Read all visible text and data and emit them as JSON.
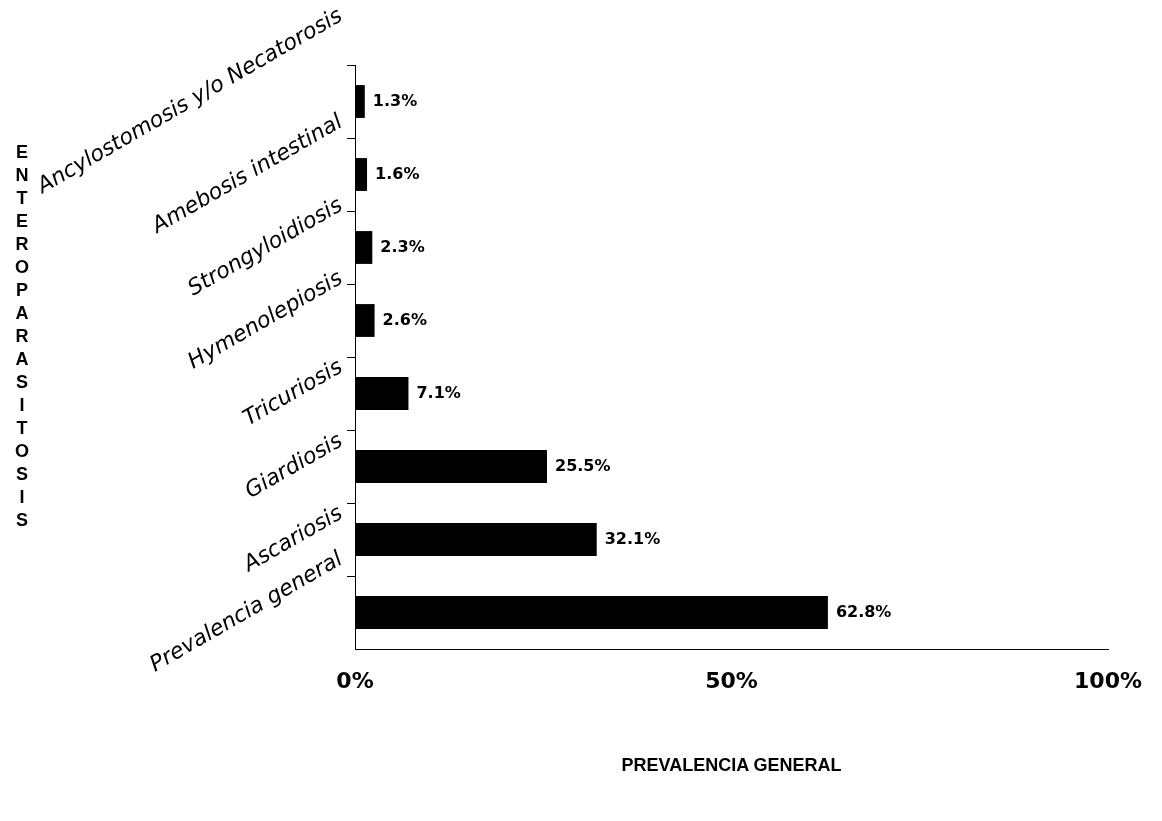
{
  "chart_data": {
    "type": "bar",
    "orientation": "horizontal",
    "xlabel": "PREVALENCIA GENERAL",
    "ylabel": "ENTEROPARASITOSIS",
    "categories": [
      "Ancylostomosis y/o Necatorosis",
      "Amebosis intestinal",
      "Strongyloidiosis",
      "Hymenolepiosis",
      "Tricuriosis",
      "Giardiosis",
      "Ascariosis",
      "Prevalencia general"
    ],
    "values": [
      1.3,
      1.6,
      2.3,
      2.6,
      7.1,
      25.5,
      32.1,
      62.8
    ],
    "value_labels": [
      "1.3%",
      "1.6%",
      "2.3%",
      "2.6%",
      "7.1%",
      "25.5%",
      "32.1%",
      "62.8%"
    ],
    "color": "#000000",
    "xlim": [
      0,
      100
    ],
    "xticks": [
      {
        "value": 0,
        "label": "0%"
      },
      {
        "value": 50,
        "label": "50%"
      },
      {
        "value": 100,
        "label": "100%"
      }
    ],
    "grid": false,
    "legend": false
  }
}
